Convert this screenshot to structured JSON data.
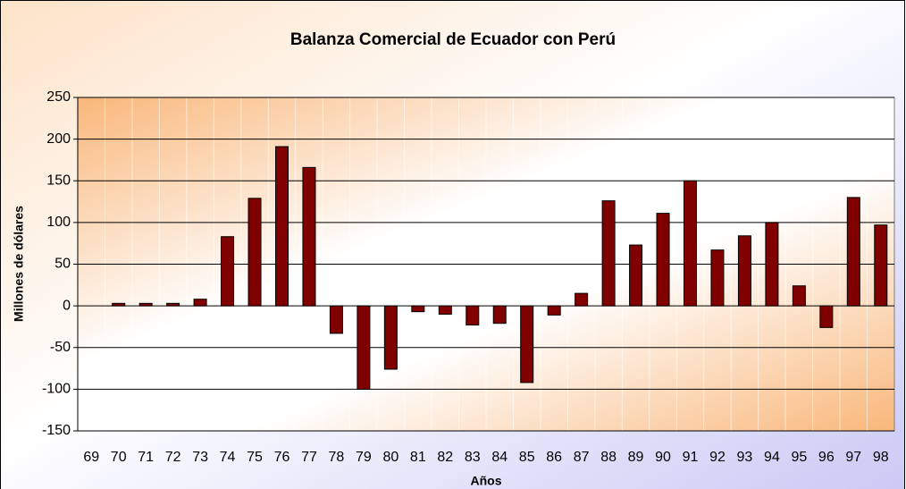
{
  "chart_data": {
    "type": "bar",
    "title": "Balanza Comercial de Ecuador con Perú",
    "x_label": "Años",
    "y_label": "Millones de dólares",
    "categories": [
      "69",
      "70",
      "71",
      "72",
      "73",
      "74",
      "75",
      "76",
      "77",
      "78",
      "79",
      "80",
      "81",
      "82",
      "83",
      "84",
      "85",
      "86",
      "87",
      "88",
      "89",
      "90",
      "91",
      "92",
      "93",
      "94",
      "95",
      "96",
      "97",
      "98"
    ],
    "values": [
      0,
      3,
      3,
      3,
      8,
      83,
      129,
      191,
      166,
      -33,
      -100,
      -76,
      -7,
      -10,
      -23,
      -21,
      -92,
      -11,
      15,
      126,
      73,
      111,
      150,
      67,
      84,
      100,
      24,
      -26,
      130,
      97
    ],
    "color": "#800000",
    "ylim": [
      -150,
      250
    ],
    "yticks": [
      -150,
      -100,
      -50,
      0,
      50,
      100,
      150,
      200,
      250
    ],
    "grid": true
  }
}
